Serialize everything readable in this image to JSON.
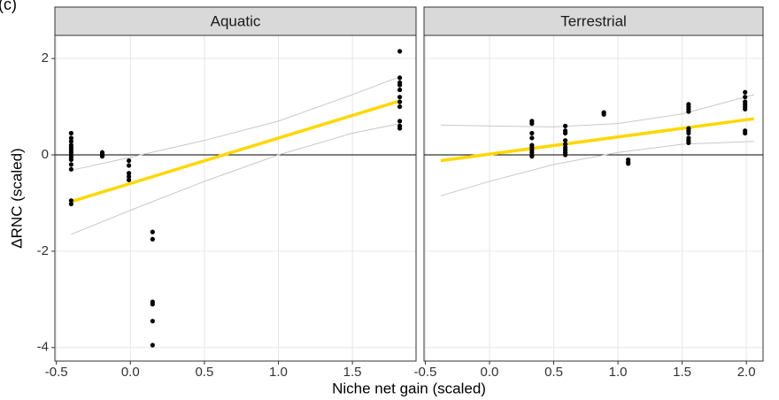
{
  "tag": "(c)",
  "axis_labels": {
    "x": "Niche net gain (scaled)",
    "y": "ΔRNC (scaled)"
  },
  "chart_data": [
    {
      "type": "scatter",
      "title": "Aquatic",
      "xlim": [
        -0.51,
        1.93
      ],
      "xticks": [
        -0.5,
        {
          "value": 0,
          "label": "0.0"
        },
        0.5,
        {
          "value": 1,
          "label": "1.0"
        },
        1.5
      ],
      "ylim": [
        -4.28,
        2.48
      ],
      "yticks": [
        -4,
        -2,
        0,
        2
      ],
      "grid": true,
      "hline": 0,
      "points": {
        "color": "#000000",
        "x": [
          -0.4,
          -0.4,
          -0.4,
          -0.4,
          -0.4,
          -0.4,
          -0.4,
          -0.4,
          -0.4,
          -0.4,
          -0.4,
          -0.4,
          -0.4,
          -0.4,
          -0.19,
          -0.19,
          -0.19,
          -0.19,
          -0.01,
          -0.01,
          -0.01,
          -0.01,
          -0.01,
          0.15,
          0.15,
          0.15,
          0.15,
          0.15,
          0.15,
          1.82,
          1.82,
          1.82,
          1.82,
          1.82,
          1.82,
          1.82,
          1.82,
          1.82,
          1.82,
          1.82
        ],
        "values": [
          0.45,
          0.35,
          0.28,
          0.2,
          0.15,
          0.1,
          0.05,
          0,
          -0.05,
          -0.1,
          -0.2,
          -0.3,
          -0.95,
          -1.02,
          0.05,
          0.02,
          -0.02,
          -0.03,
          -0.12,
          -0.22,
          -0.38,
          -0.45,
          -0.52,
          -1.6,
          -1.75,
          -3.05,
          -3.1,
          -3.45,
          -3.95,
          2.15,
          1.6,
          1.5,
          1.45,
          1.35,
          1.2,
          1.1,
          1.0,
          0.7,
          0.6,
          0.55
        ]
      },
      "fit": {
        "color": "#ffd700",
        "x": [
          -0.4,
          1.82
        ],
        "values": [
          -0.97,
          1.12
        ]
      },
      "ci_upper": {
        "color": "#c8c8c8",
        "x": [
          -0.4,
          0,
          0.5,
          1.0,
          1.5,
          1.82
        ],
        "values": [
          -0.32,
          -0.05,
          0.3,
          0.7,
          1.25,
          1.62
        ]
      },
      "ci_lower": {
        "color": "#c8c8c8",
        "x": [
          -0.4,
          0,
          0.5,
          1.0,
          1.5,
          1.82
        ],
        "values": [
          -1.65,
          -1.15,
          -0.55,
          0.0,
          0.45,
          0.65
        ]
      }
    },
    {
      "type": "scatter",
      "title": "Terrestrial",
      "xlim": [
        -0.51,
        2.13
      ],
      "xticks": [
        -0.5,
        {
          "value": 0,
          "label": "0.0"
        },
        0.5,
        {
          "value": 1,
          "label": "1.0"
        },
        1.5,
        {
          "value": 2,
          "label": "2.0"
        }
      ],
      "ylim": [
        -4.28,
        2.48
      ],
      "yticks": [
        -4,
        -2,
        0,
        2
      ],
      "grid": true,
      "hline": 0,
      "points": {
        "color": "#000000",
        "x": [
          0.33,
          0.33,
          0.33,
          0.33,
          0.33,
          0.33,
          0.33,
          0.33,
          0.33,
          0.33,
          0.59,
          0.59,
          0.59,
          0.59,
          0.59,
          0.59,
          0.59,
          0.59,
          0.59,
          0.89,
          0.89,
          1.08,
          1.08,
          1.08,
          1.55,
          1.55,
          1.55,
          1.55,
          1.55,
          1.55,
          1.55,
          1.55,
          1.55,
          1.55,
          1.99,
          1.99,
          1.99,
          1.99,
          1.99,
          1.99,
          1.99,
          1.99
        ],
        "values": [
          0.7,
          0.65,
          0.45,
          0.35,
          0.2,
          0.15,
          0.1,
          0.05,
          0,
          -0.03,
          0.6,
          0.5,
          0.45,
          0.3,
          0.22,
          0.15,
          0.1,
          0.05,
          0,
          0.88,
          0.84,
          -0.1,
          -0.15,
          -0.18,
          1.05,
          1.0,
          0.95,
          0.9,
          0.55,
          0.5,
          0.45,
          0.35,
          0.3,
          0.25,
          1.3,
          1.2,
          1.1,
          1.05,
          1.0,
          0.95,
          0.5,
          0.45
        ]
      },
      "fit": {
        "color": "#ffd700",
        "x": [
          -0.38,
          2.06
        ],
        "values": [
          -0.12,
          0.75
        ]
      },
      "ci_upper": {
        "color": "#c8c8c8",
        "x": [
          -0.38,
          0,
          0.5,
          1.0,
          1.5,
          2.06
        ],
        "values": [
          0.62,
          0.6,
          0.58,
          0.65,
          0.85,
          1.25
        ]
      },
      "ci_lower": {
        "color": "#c8c8c8",
        "x": [
          -0.38,
          0,
          0.5,
          1.0,
          1.5,
          2.06
        ],
        "values": [
          -0.85,
          -0.55,
          -0.2,
          0.05,
          0.22,
          0.28
        ]
      }
    }
  ]
}
